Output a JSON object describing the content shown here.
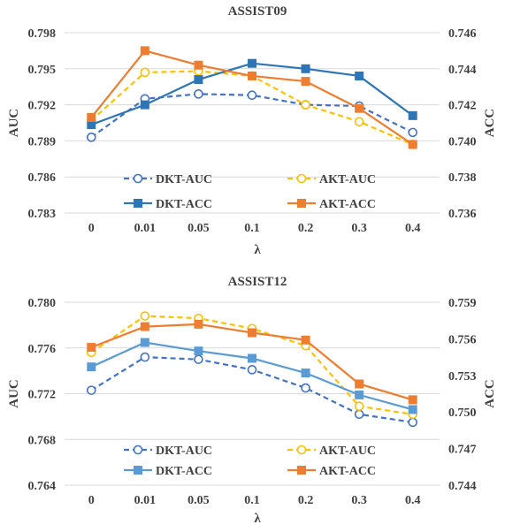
{
  "chart_data": [
    {
      "type": "line",
      "title": "ASSIST09",
      "xlabel": "λ",
      "ylabel": "AUC",
      "y2label": "ACC",
      "categories": [
        "0",
        "0.01",
        "0.05",
        "0.1",
        "0.2",
        "0.3",
        "0.4"
      ],
      "ylim": [
        0.783,
        0.798
      ],
      "yticks": [
        "0.798",
        "0.795",
        "0.792",
        "0.789",
        "0.786",
        "0.783"
      ],
      "y2lim": [
        0.736,
        0.746
      ],
      "y2ticks": [
        "0.746",
        "0.744",
        "0.742",
        "0.740",
        "0.738",
        "0.736"
      ],
      "grid": true,
      "legend_position": "lower-center",
      "series": [
        {
          "name": "DKT-AUC",
          "axis": "left",
          "color": "#4472c4",
          "style": "dashed",
          "marker": "open-circle",
          "values": [
            0.7893,
            0.7925,
            0.7929,
            0.7928,
            0.792,
            0.7919,
            0.7897
          ]
        },
        {
          "name": "AKT-AUC",
          "axis": "left",
          "color": "#ffc000",
          "style": "dashed",
          "marker": "open-circle",
          "values": [
            0.7907,
            0.7947,
            0.7948,
            0.7944,
            0.792,
            0.7906,
            0.7887
          ]
        },
        {
          "name": "DKT-ACC",
          "axis": "right",
          "color": "#2e75b6",
          "style": "solid",
          "marker": "filled-square",
          "values": [
            0.7409,
            0.742,
            0.7434,
            0.7443,
            0.744,
            0.7436,
            0.7414
          ]
        },
        {
          "name": "AKT-ACC",
          "axis": "right",
          "color": "#ed7d31",
          "style": "solid",
          "marker": "filled-square",
          "values": [
            0.7413,
            0.745,
            0.7442,
            0.7436,
            0.7433,
            0.7418,
            0.7398
          ]
        }
      ]
    },
    {
      "type": "line",
      "title": "ASSIST12",
      "xlabel": "λ",
      "ylabel": "AUC",
      "y2label": "ACC",
      "categories": [
        "0",
        "0.01",
        "0.05",
        "0.1",
        "0.2",
        "0.3",
        "0.4"
      ],
      "ylim": [
        0.764,
        0.78
      ],
      "yticks": [
        "0.780",
        "0.776",
        "0.772",
        "0.768",
        "0.764"
      ],
      "y2lim": [
        0.744,
        0.759
      ],
      "y2ticks": [
        "0.759",
        "0.756",
        "0.753",
        "0.750",
        "0.747",
        "0.744"
      ],
      "grid": true,
      "legend_position": "lower-center",
      "series": [
        {
          "name": "DKT-AUC",
          "axis": "left",
          "color": "#4472c4",
          "style": "dashed",
          "marker": "open-circle",
          "values": [
            0.7723,
            0.7752,
            0.775,
            0.7741,
            0.7725,
            0.7702,
            0.7695
          ]
        },
        {
          "name": "AKT-AUC",
          "axis": "left",
          "color": "#ffc000",
          "style": "dashed",
          "marker": "open-circle",
          "values": [
            0.7756,
            0.7788,
            0.7786,
            0.7777,
            0.7762,
            0.7709,
            0.7702
          ]
        },
        {
          "name": "DKT-ACC",
          "axis": "right",
          "color": "#5b9bd5",
          "style": "solid",
          "marker": "filled-square",
          "values": [
            0.7537,
            0.7557,
            0.755,
            0.7544,
            0.7532,
            0.7514,
            0.7502
          ]
        },
        {
          "name": "AKT-ACC",
          "axis": "right",
          "color": "#ed7d31",
          "style": "solid",
          "marker": "filled-square",
          "values": [
            0.7553,
            0.757,
            0.7572,
            0.7565,
            0.7559,
            0.7523,
            0.751
          ]
        }
      ]
    }
  ]
}
